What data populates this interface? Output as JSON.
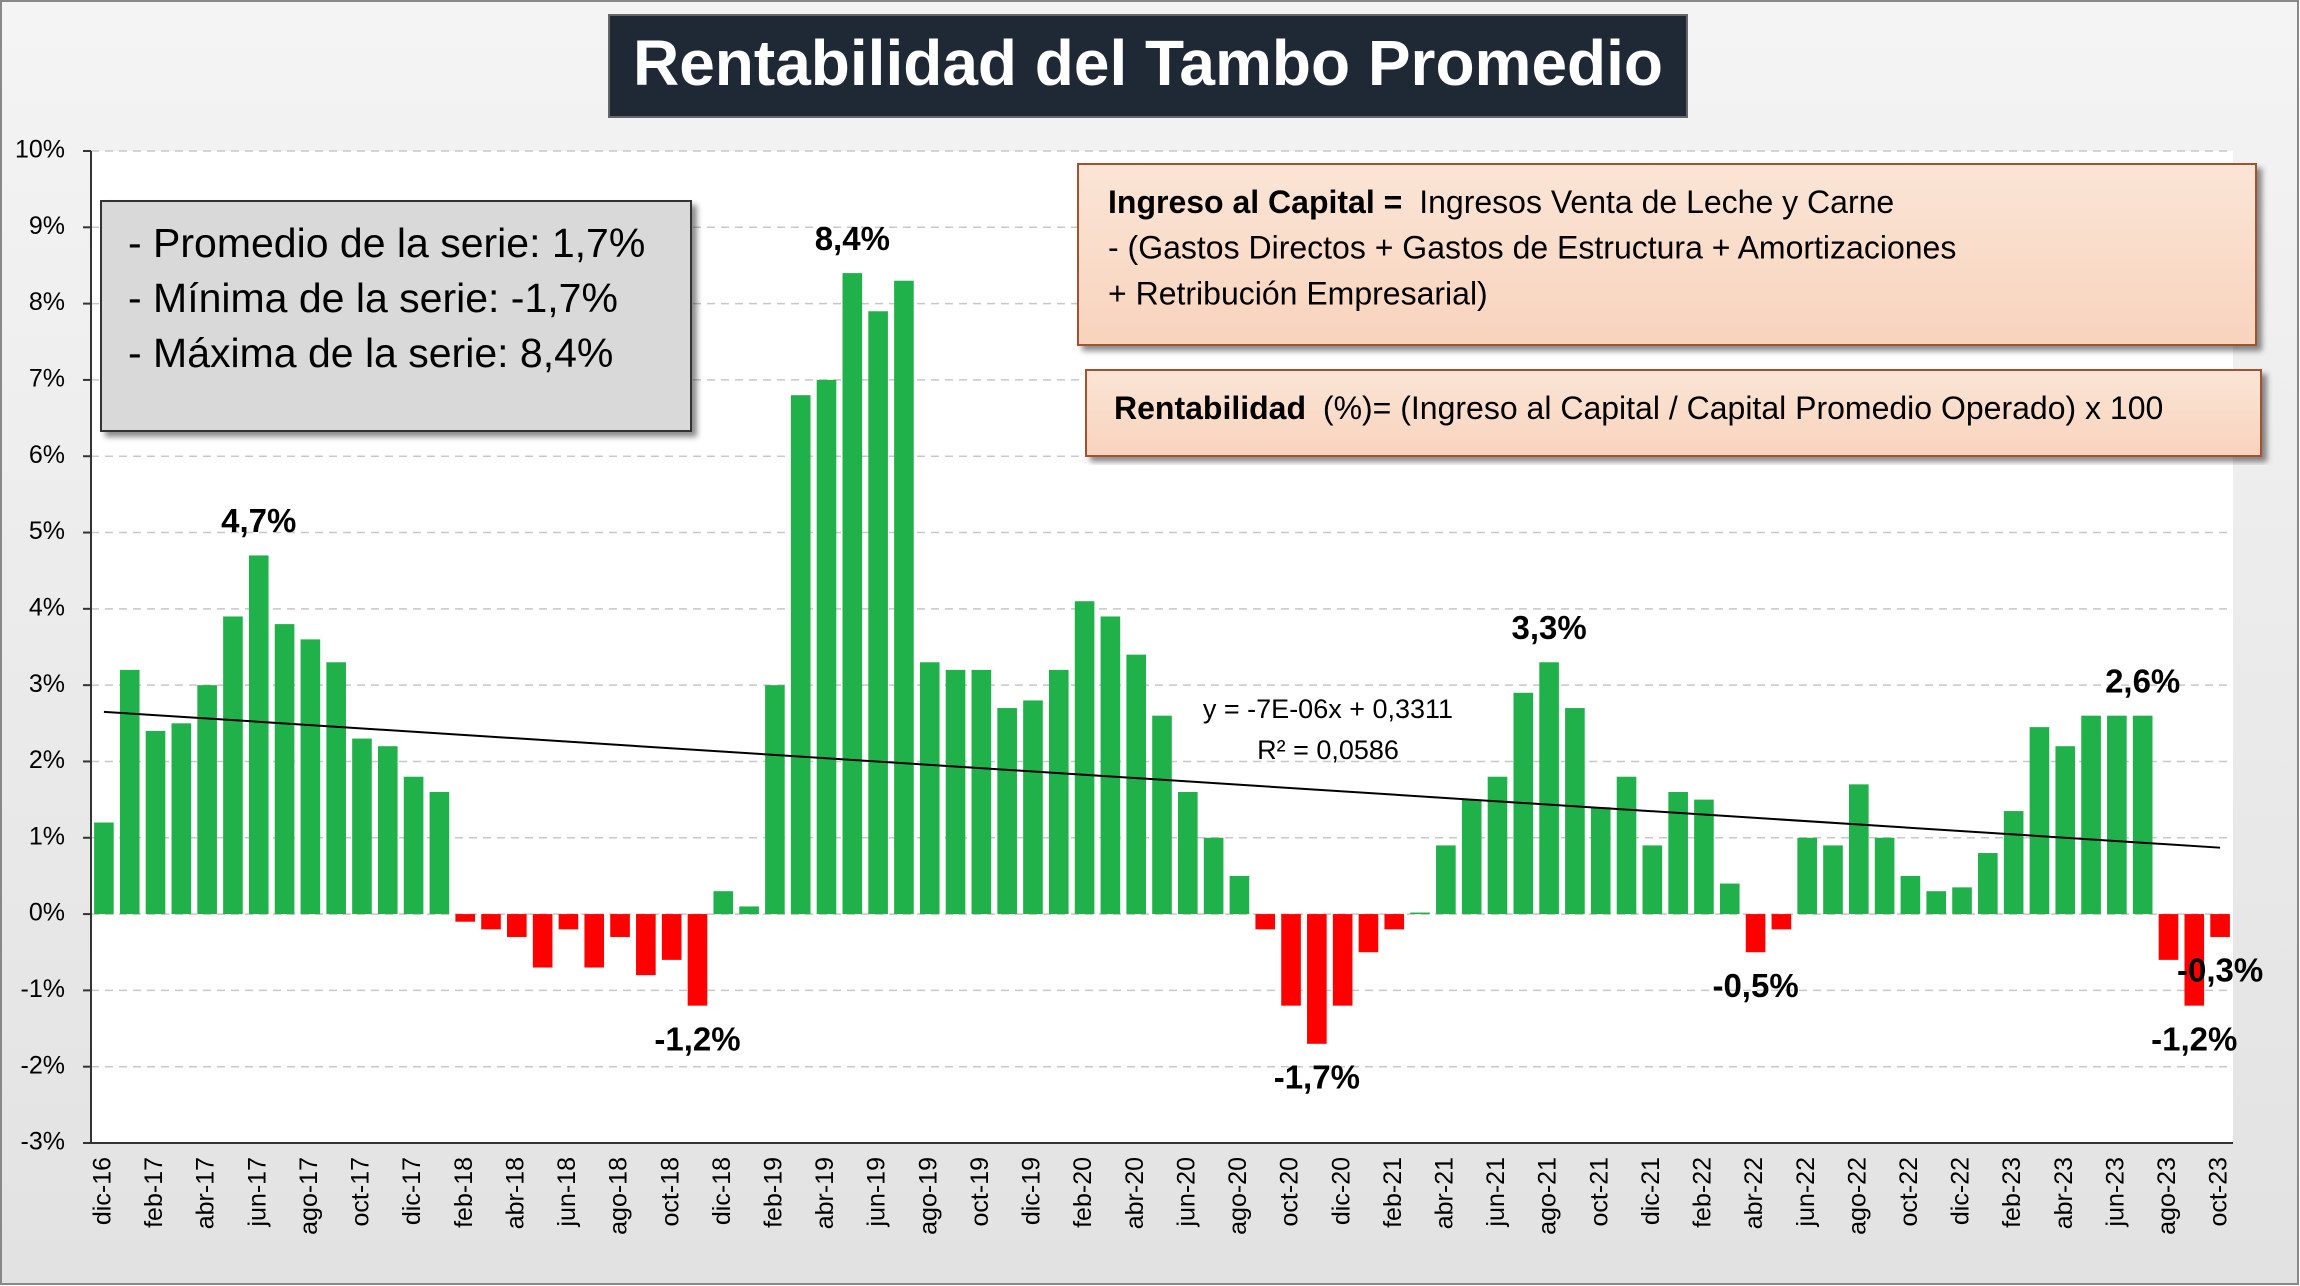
{
  "chart_data": {
    "type": "bar",
    "title": "Rentabilidad del Tambo Promedio",
    "categories": [
      "dic-16",
      null,
      "feb-17",
      null,
      "abr-17",
      null,
      "jun-17",
      null,
      "ago-17",
      null,
      "oct-17",
      null,
      "dic-17",
      null,
      "feb-18",
      null,
      "abr-18",
      null,
      "jun-18",
      null,
      "ago-18",
      null,
      "oct-18",
      null,
      "dic-18",
      null,
      "feb-19",
      null,
      "abr-19",
      null,
      "jun-19",
      null,
      "ago-19",
      null,
      "oct-19",
      null,
      "dic-19",
      null,
      "feb-20",
      null,
      "abr-20",
      null,
      "jun-20",
      null,
      "ago-20",
      null,
      "oct-20",
      null,
      "dic-20",
      null,
      "feb-21",
      null,
      "abr-21",
      null,
      "jun-21",
      null,
      "ago-21",
      null,
      "oct-21",
      null,
      "dic-21",
      null,
      "feb-22",
      null,
      "abr-22",
      null,
      "jun-22",
      null,
      "ago-22",
      null,
      "oct-22",
      null,
      "dic-22",
      null,
      "feb-23",
      null,
      "abr-23",
      null,
      "jun-23",
      null,
      "ago-23",
      null,
      "oct-23"
    ],
    "values": [
      1.2,
      3.2,
      2.4,
      2.5,
      3.0,
      3.9,
      4.7,
      3.8,
      3.6,
      3.3,
      2.3,
      2.2,
      1.8,
      1.6,
      -0.1,
      -0.2,
      -0.3,
      -0.7,
      -0.2,
      -0.7,
      -0.3,
      -0.8,
      -0.6,
      -1.2,
      0.3,
      0.1,
      3.0,
      6.8,
      7.0,
      8.4,
      7.9,
      8.3,
      3.3,
      3.2,
      3.2,
      2.7,
      2.8,
      3.2,
      4.1,
      3.9,
      3.4,
      2.6,
      1.6,
      1.0,
      0.5,
      -0.2,
      -1.2,
      -1.7,
      -1.2,
      -0.5,
      -0.2,
      0.02,
      0.9,
      1.5,
      1.8,
      2.9,
      3.3,
      2.7,
      1.4,
      1.8,
      0.9,
      1.6,
      1.5,
      0.4,
      -0.5,
      -0.2,
      1.0,
      0.9,
      1.7,
      1.0,
      0.5,
      0.3,
      0.35,
      0.8,
      1.35,
      2.45,
      2.2,
      2.6,
      2.6,
      2.6,
      -0.6,
      -1.2,
      -0.3
    ],
    "value_labels": [
      null,
      null,
      null,
      null,
      null,
      null,
      "4,7%",
      null,
      null,
      null,
      null,
      null,
      null,
      null,
      null,
      null,
      null,
      null,
      null,
      null,
      null,
      null,
      null,
      "-1,2%",
      null,
      null,
      null,
      null,
      null,
      "8,4%",
      null,
      null,
      null,
      null,
      null,
      null,
      null,
      null,
      null,
      null,
      null,
      null,
      null,
      null,
      null,
      null,
      null,
      "-1,7%",
      null,
      null,
      null,
      null,
      null,
      null,
      null,
      null,
      "3,3%",
      null,
      null,
      null,
      null,
      null,
      null,
      null,
      "-0,5%",
      null,
      null,
      null,
      null,
      null,
      null,
      null,
      null,
      null,
      null,
      null,
      null,
      null,
      null,
      "2,6%",
      null,
      "-1,2%",
      "-0,3%"
    ],
    "positive_color": "#21b14b",
    "negative_color": "#ff0000",
    "ylim": [
      -3,
      10
    ],
    "yticks": [
      {
        "value": -3,
        "label": "-3%"
      },
      {
        "value": -2,
        "label": "-2%"
      },
      {
        "value": -1,
        "label": "-1%"
      },
      {
        "value": 0,
        "label": "0%"
      },
      {
        "value": 1,
        "label": "1%"
      },
      {
        "value": 2,
        "label": "2%"
      },
      {
        "value": 3,
        "label": "3%"
      },
      {
        "value": 4,
        "label": "4%"
      },
      {
        "value": 5,
        "label": "5%"
      },
      {
        "value": 6,
        "label": "6%"
      },
      {
        "value": 7,
        "label": "7%"
      },
      {
        "value": 8,
        "label": "8%"
      },
      {
        "value": 9,
        "label": "9%"
      },
      {
        "value": 10,
        "label": "10%"
      }
    ],
    "grid": true,
    "trendline": {
      "values": [
        2.65,
        0.87
      ],
      "equation": "y = -7E-06x + 0,3311",
      "r2": "R² = 0,0586"
    },
    "stats_box": [
      "- Promedio de la serie: 1,7%",
      "- Mínima de la serie: -1,7%",
      "- Máxima de la serie: 8,4%"
    ],
    "formula_box": {
      "bold": "Ingreso al Capital =",
      "lines": [
        "Ingresos Venta de Leche y Carne",
        "-  (Gastos Directos + Gastos de Estructura  + Amortizaciones",
        "+  Retribución Empresarial)"
      ]
    },
    "rentabilidad_box": {
      "bold": "Rentabilidad",
      "text": "(%)= (Ingreso al Capital / Capital Promedio Operado) x 100"
    }
  }
}
